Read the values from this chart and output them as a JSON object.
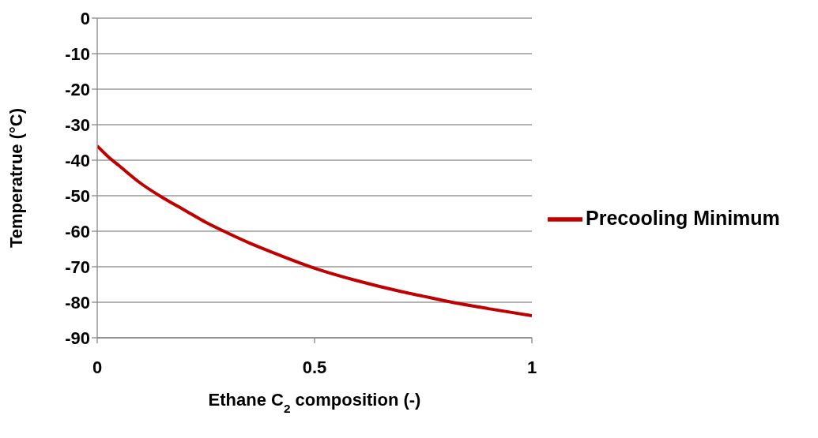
{
  "chart_data": {
    "type": "line",
    "xlabel": "Ethane C$_{2}$ composition (-)",
    "ylabel": "Temperatrue (°C)",
    "x": [
      0,
      0.025,
      0.05,
      0.1,
      0.15,
      0.2,
      0.25,
      0.3,
      0.35,
      0.4,
      0.5,
      0.6,
      0.7,
      0.75,
      0.8,
      0.9,
      1
    ],
    "series": [
      {
        "name": "Precooling Minimum",
        "color": "#c00000",
        "values": [
          -36,
          -39,
          -41.5,
          -46.5,
          -50.5,
          -54,
          -57.5,
          -60.5,
          -63.3,
          -65.8,
          -70.4,
          -74,
          -77,
          -78.3,
          -79.6,
          -81.8,
          -83.8
        ]
      }
    ],
    "xlim": [
      0,
      1
    ],
    "xticks": [
      0,
      0.5,
      1
    ],
    "ylim": [
      -90,
      0
    ],
    "yticks": [
      -90,
      -80,
      -70,
      -60,
      -50,
      -40,
      -30,
      -20,
      -10,
      0
    ],
    "grid": "y",
    "legend": "right",
    "marker": "none",
    "line_style": "solid"
  }
}
